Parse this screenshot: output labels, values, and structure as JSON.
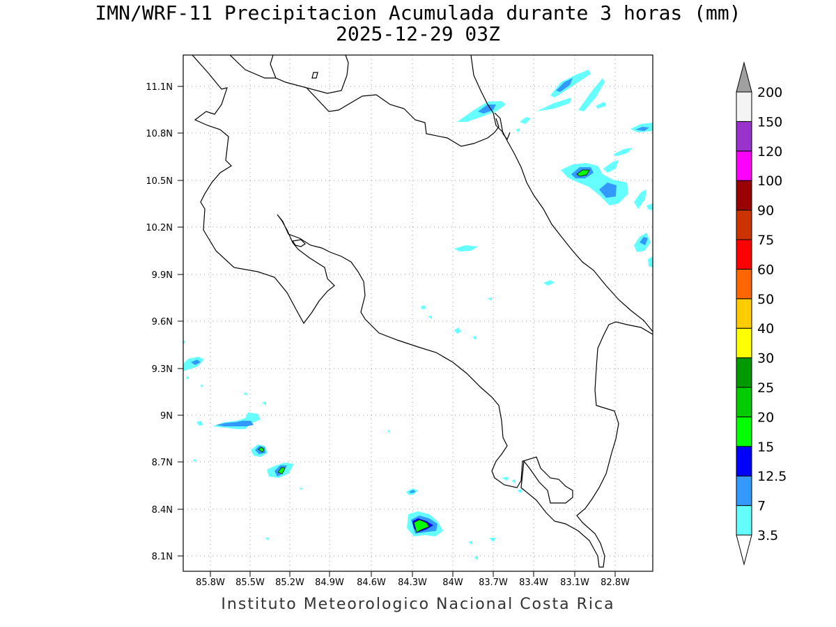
{
  "title": {
    "line1": "IMN/WRF-11 Precipitacion Acumulada durante 3 horas (mm)",
    "line2": "2025-12-29 03Z"
  },
  "credit": "Instituto Meteorologico Nacional Costa Rica",
  "map": {
    "lon_range": [
      -86.05,
      -82.65
    ],
    "lat_range": [
      8.01,
      11.33
    ],
    "lat_ticks": [
      "11.1N",
      "10.8N",
      "10.5N",
      "10.2N",
      "9.9N",
      "9.6N",
      "9.3N",
      "9N",
      "8.7N",
      "8.4N",
      "8.1N"
    ],
    "lon_ticks": [
      "85.8W",
      "85.5W",
      "85.2W",
      "84.9W",
      "84.6W",
      "84.3W",
      "84W",
      "83.7W",
      "83.4W",
      "83.1W",
      "82.8W"
    ],
    "grid": "dotted"
  },
  "colorbar": {
    "levels": [
      "3.5",
      "7",
      "12.5",
      "15",
      "20",
      "25",
      "30",
      "40",
      "50",
      "60",
      "75",
      "90",
      "100",
      "120",
      "150",
      "200"
    ],
    "colors": [
      "#66ffff",
      "#3399ff",
      "#0000ff",
      "#00ff00",
      "#00cc00",
      "#009900",
      "#ffff00",
      "#ffcc00",
      "#ff6600",
      "#ff0000",
      "#cc3300",
      "#990000",
      "#ff00ff",
      "#9933cc",
      "#f4f4f4"
    ],
    "over_color": "#a0a0a0",
    "under_color": "#ffffff"
  }
}
